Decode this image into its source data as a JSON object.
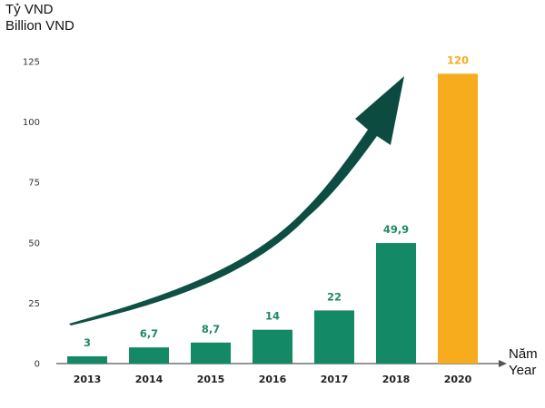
{
  "chart_data": {
    "type": "bar",
    "title": "",
    "ylabel": [
      "Tỷ VND",
      "Billion VND"
    ],
    "xlabel": [
      "Năm",
      "Year"
    ],
    "categories": [
      "2013",
      "2014",
      "2015",
      "2016",
      "2017",
      "2018",
      "2020"
    ],
    "values": [
      3,
      6.7,
      8.7,
      14,
      22,
      49.9,
      120
    ],
    "value_labels": [
      "3",
      "6,7",
      "8,7",
      "14",
      "22",
      "49,9",
      "120"
    ],
    "ylim": [
      0,
      125
    ],
    "yticks": [
      0,
      25,
      50,
      75,
      100,
      125
    ],
    "grid": false,
    "legend": "none",
    "colors": {
      "bar": "#138a65",
      "highlight_bar": "#f6ac1d",
      "bar_label": "#1f8a62",
      "highlight_label": "#f6ac1d",
      "arrow": "#0f5245",
      "axis": "#555555"
    },
    "highlight_index": 6,
    "annotation": "trend-arrow"
  }
}
